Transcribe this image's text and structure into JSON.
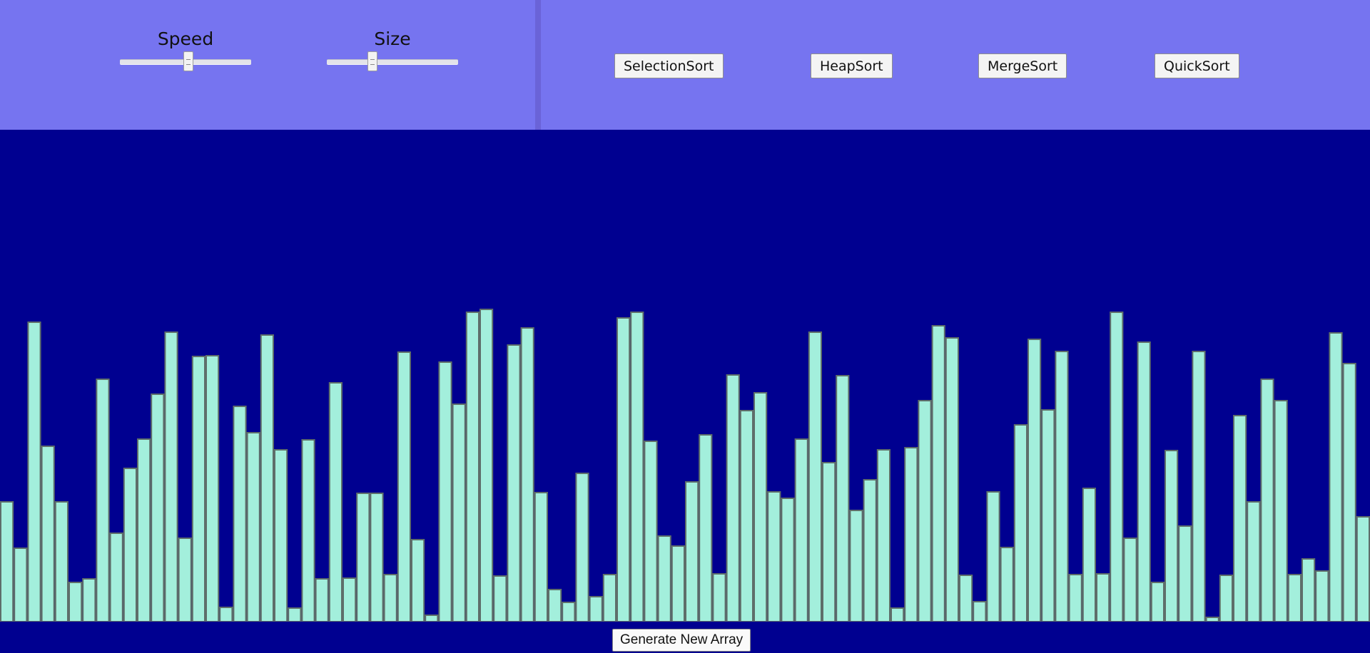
{
  "controls": {
    "speed": {
      "label": "Speed",
      "value": 0.52
    },
    "size": {
      "label": "Size",
      "value": 0.35
    }
  },
  "algorithms": [
    "SelectionSort",
    "HeapSort",
    "MergeSort",
    "QuickSort"
  ],
  "generate_label": "Generate New Array",
  "colors": {
    "header_bg": "#7674f0",
    "divider": "#6a63d8",
    "canvas_bg": "#000090",
    "bar_fill": "#a3efdc",
    "bar_stroke": "#5e6e6a"
  },
  "bars": [
    168,
    103,
    420,
    246,
    168,
    55,
    60,
    340,
    124,
    215,
    256,
    319,
    406,
    117,
    372,
    373,
    20,
    302,
    265,
    402,
    241,
    19,
    255,
    60,
    335,
    61,
    180,
    180,
    66,
    378,
    115,
    9,
    364,
    305,
    434,
    438,
    64,
    388,
    412,
    181,
    45,
    27,
    208,
    35,
    66,
    426,
    434,
    253,
    120,
    106,
    196,
    262,
    67,
    346,
    296,
    321,
    182,
    173,
    256,
    406,
    223,
    345,
    156,
    199,
    241,
    19,
    244,
    310,
    415,
    398,
    65,
    28,
    182,
    104,
    276,
    396,
    297,
    379,
    66,
    187,
    67,
    434,
    117,
    392,
    55,
    240,
    134,
    379,
    6,
    65,
    289,
    168,
    340,
    310,
    66,
    88,
    71,
    405,
    362,
    147
  ]
}
